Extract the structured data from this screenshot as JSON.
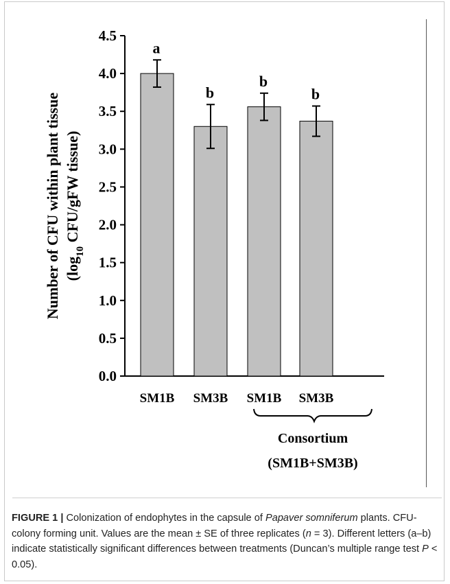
{
  "chart_data": {
    "type": "bar",
    "categories": [
      "SM1B",
      "SM3B",
      "SM1B",
      "SM3B"
    ],
    "values": [
      4.0,
      3.3,
      3.56,
      3.37
    ],
    "errors": [
      0.18,
      0.29,
      0.18,
      0.2
    ],
    "significance_letters": [
      "a",
      "b",
      "b",
      "b"
    ],
    "ylim": [
      0.0,
      4.5
    ],
    "yticks": [
      "0.0",
      "0.5",
      "1.0",
      "1.5",
      "2.0",
      "2.5",
      "3.0",
      "3.5",
      "4.0",
      "4.5"
    ],
    "ylabel_line1": "Number of CFU within plant tissue",
    "ylabel_line2_pre": "(log",
    "ylabel_line2_sub": "10",
    "ylabel_line2_post": " CFU/gFW tissue)",
    "group_label_line1": "Consortium",
    "group_label_line2": "(SM1B+SM3B)",
    "bar_color": "#c0c0c0",
    "grid": false
  },
  "caption": {
    "label": "FIGURE 1 |",
    "text_1": " Colonization of endophytes in the capsule of ",
    "species": "Papaver somniferum",
    "text_2": " plants. CFU- colony forming unit. Values are the mean ± SE of three replicates (",
    "n_symbol": "n",
    "text_3": " = 3). Different letters (a–b) indicate statistically significant differences between treatments (Duncan’s multiple range test ",
    "p_symbol": "P",
    "text_4": " < 0.05)."
  }
}
